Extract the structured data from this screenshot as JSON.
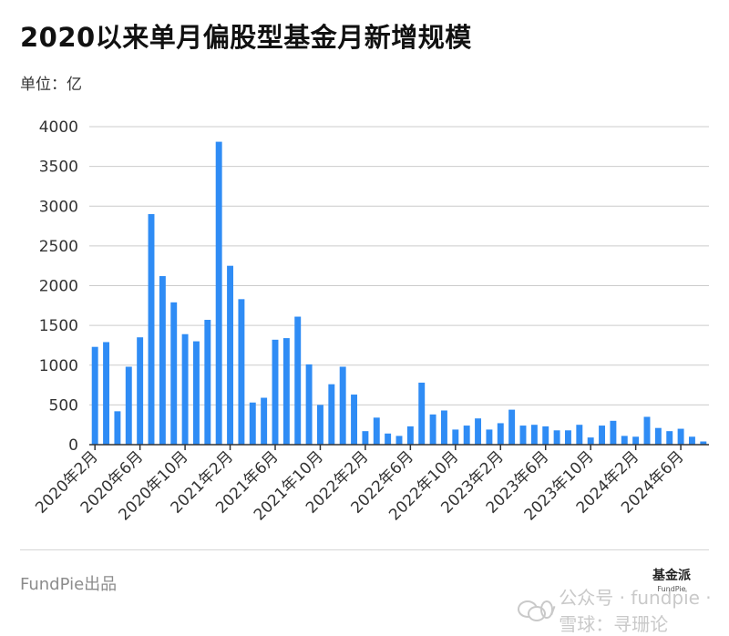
{
  "header": {
    "title": "2020以来单月偏股型基金月新增规模",
    "unit_label": "单位：亿"
  },
  "footer": {
    "brand": "FundPie出品",
    "logo_main": "基金派",
    "logo_sub": "FundPie",
    "watermark": "公众号 · fundpie · 雪球：寻珊论"
  },
  "colors": {
    "bar": "#2f8cf5",
    "grid": "#cccccc",
    "axis": "#333333"
  },
  "icons": [
    "wechat-icon",
    "xueqiu-icon"
  ],
  "chart_data": {
    "type": "bar",
    "title": "2020以来单月偏股型基金月新增规模",
    "xlabel": "",
    "ylabel": "单位：亿",
    "ylim": [
      0,
      4000
    ],
    "yticks": [
      "0",
      "500",
      "1000",
      "1500",
      "2000",
      "2500",
      "3000",
      "3500",
      "4000"
    ],
    "grid": true,
    "legend": "none",
    "categories": [
      "2020年2月",
      "2020年3月",
      "2020年4月",
      "2020年5月",
      "2020年6月",
      "2020年7月",
      "2020年8月",
      "2020年9月",
      "2020年10月",
      "2020年11月",
      "2020年12月",
      "2021年1月",
      "2021年2月",
      "2021年3月",
      "2021年4月",
      "2021年5月",
      "2021年6月",
      "2021年7月",
      "2021年8月",
      "2021年9月",
      "2021年10月",
      "2021年11月",
      "2021年12月",
      "2022年1月",
      "2022年2月",
      "2022年3月",
      "2022年4月",
      "2022年5月",
      "2022年6月",
      "2022年7月",
      "2022年8月",
      "2022年9月",
      "2022年10月",
      "2022年11月",
      "2022年12月",
      "2023年1月",
      "2023年2月",
      "2023年3月",
      "2023年4月",
      "2023年5月",
      "2023年6月",
      "2023年7月",
      "2023年8月",
      "2023年9月",
      "2023年10月",
      "2023年11月",
      "2023年12月",
      "2024年1月",
      "2024年2月",
      "2024年3月",
      "2024年4月",
      "2024年5月",
      "2024年6月",
      "2024年7月",
      "2024年8月"
    ],
    "tick_labels": [
      "2020年2月",
      "2020年6月",
      "2020年10月",
      "2021年2月",
      "2021年6月",
      "2021年10月",
      "2022年2月",
      "2022年6月",
      "2022年10月",
      "2023年2月",
      "2023年6月",
      "2023年10月",
      "2024年2月",
      "2024年6月"
    ],
    "values": [
      1230,
      1290,
      420,
      980,
      1350,
      2900,
      2120,
      1790,
      1390,
      1300,
      1570,
      3810,
      2250,
      1830,
      530,
      590,
      1320,
      1340,
      1610,
      1010,
      500,
      760,
      980,
      630,
      170,
      340,
      140,
      110,
      230,
      780,
      380,
      430,
      190,
      240,
      330,
      190,
      270,
      440,
      240,
      250,
      230,
      180,
      180,
      250,
      90,
      240,
      300,
      110,
      100,
      350,
      210,
      170,
      200,
      100,
      40
    ]
  }
}
